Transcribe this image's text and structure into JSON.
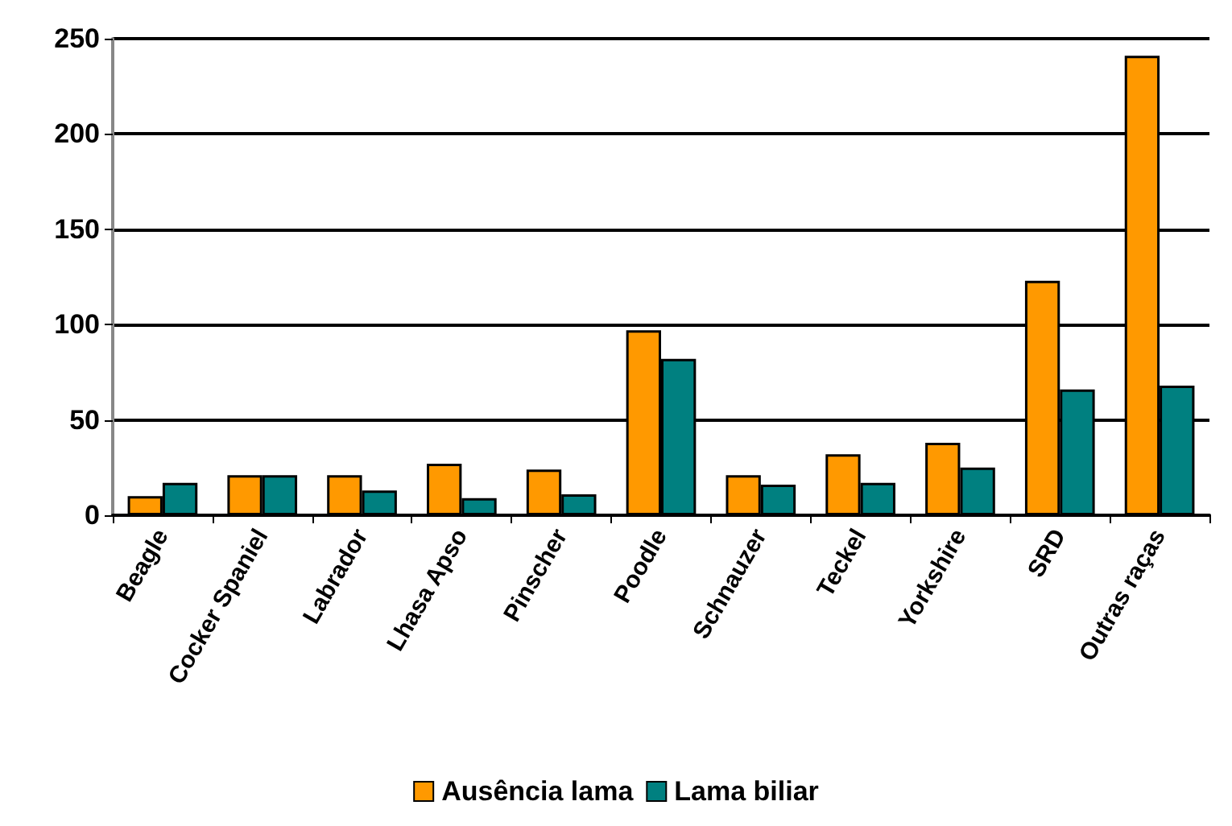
{
  "chart_data": {
    "type": "bar",
    "categories": [
      "Beagle",
      "Cocker Spaniel",
      "Labrador",
      "Lhasa Apso",
      "Pinscher",
      "Poodle",
      "Schnauzer",
      "Teckel",
      "Yorkshire",
      "SRD",
      "Outras raças"
    ],
    "series": [
      {
        "name": "Ausência lama",
        "color": "#ff9900",
        "values": [
          10,
          21,
          21,
          27,
          24,
          97,
          21,
          32,
          38,
          123,
          241
        ]
      },
      {
        "name": "Lama biliar",
        "color": "#008080",
        "values": [
          17,
          21,
          13,
          9,
          11,
          82,
          16,
          17,
          25,
          66,
          68
        ]
      }
    ],
    "ylim": [
      0,
      250
    ],
    "yticks": [
      0,
      50,
      100,
      150,
      200,
      250
    ],
    "grid": "y",
    "legend": "bottom"
  }
}
